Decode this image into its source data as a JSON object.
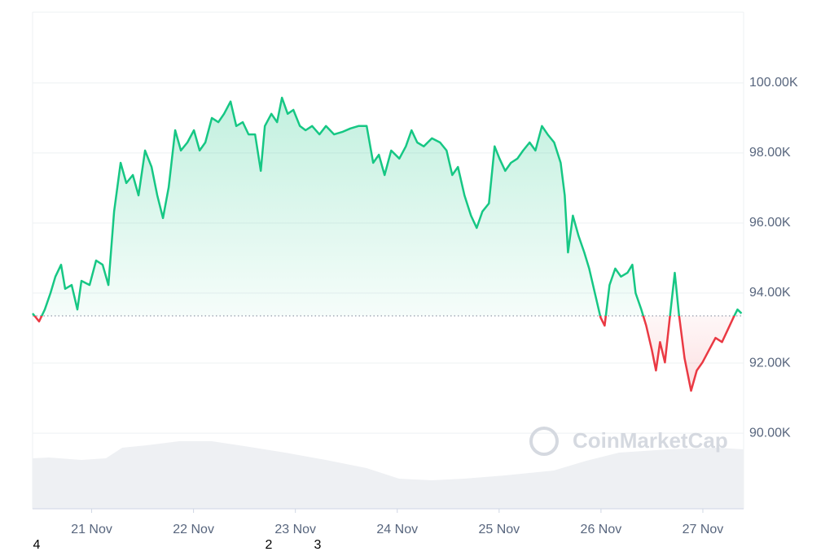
{
  "chart_data": {
    "type": "baseline-line",
    "watermark": "CoinMarketCap",
    "footnotes": [
      "4",
      "2",
      "3"
    ],
    "above_color": "#16c784",
    "below_color": "#ea3943",
    "baseline": 93.35,
    "xlim": [
      20.42,
      27.4
    ],
    "xticks": [
      {
        "value": 21,
        "label": "21 Nov"
      },
      {
        "value": 22,
        "label": "22 Nov"
      },
      {
        "value": 23,
        "label": "23 Nov"
      },
      {
        "value": 24,
        "label": "24 Nov"
      },
      {
        "value": 25,
        "label": "25 Nov"
      },
      {
        "value": 26,
        "label": "26 Nov"
      },
      {
        "value": 27,
        "label": "27 Nov"
      }
    ],
    "ylim": [
      87.84,
      102.02
    ],
    "yticks": [
      {
        "value": 90,
        "label": "90.00K"
      },
      {
        "value": 92,
        "label": "92.00K"
      },
      {
        "value": 94,
        "label": "94.00K"
      },
      {
        "value": 96,
        "label": "96.00K"
      },
      {
        "value": 98,
        "label": "98.00K"
      },
      {
        "value": 100,
        "label": "100.00K"
      }
    ],
    "grid": true,
    "x": [
      20.42,
      20.484,
      20.54,
      20.596,
      20.644,
      20.7,
      20.74,
      20.804,
      20.86,
      20.9,
      20.98,
      21.044,
      21.108,
      21.164,
      21.22,
      21.284,
      21.34,
      21.404,
      21.46,
      21.524,
      21.588,
      21.644,
      21.7,
      21.756,
      21.82,
      21.876,
      21.94,
      22.004,
      22.06,
      22.116,
      22.18,
      22.244,
      22.3,
      22.364,
      22.42,
      22.484,
      22.54,
      22.604,
      22.66,
      22.7,
      22.764,
      22.82,
      22.868,
      22.924,
      22.98,
      23.044,
      23.1,
      23.164,
      23.236,
      23.3,
      23.38,
      23.46,
      23.54,
      23.62,
      23.7,
      23.764,
      23.82,
      23.876,
      23.94,
      24.02,
      24.084,
      24.14,
      24.196,
      24.26,
      24.34,
      24.42,
      24.484,
      24.54,
      24.596,
      24.66,
      24.724,
      24.78,
      24.836,
      24.9,
      24.956,
      25.004,
      25.06,
      25.116,
      25.18,
      25.236,
      25.3,
      25.356,
      25.42,
      25.476,
      25.54,
      25.604,
      25.644,
      25.676,
      25.724,
      25.78,
      25.836,
      25.884,
      25.94,
      25.996,
      26.036,
      26.084,
      26.14,
      26.196,
      26.26,
      26.308,
      26.34,
      26.396,
      26.444,
      26.5,
      26.54,
      26.58,
      26.628,
      26.676,
      26.724,
      26.764,
      26.82,
      26.884,
      26.94,
      26.996,
      27.06,
      27.124,
      27.188,
      27.244,
      27.3,
      27.34,
      27.38
    ],
    "values": [
      93.42,
      93.19,
      93.53,
      94.0,
      94.47,
      94.81,
      94.12,
      94.23,
      93.53,
      94.35,
      94.23,
      94.93,
      94.81,
      94.23,
      96.33,
      97.72,
      97.14,
      97.37,
      96.79,
      98.07,
      97.6,
      96.79,
      96.14,
      97.02,
      98.65,
      98.07,
      98.3,
      98.65,
      98.07,
      98.3,
      99.0,
      98.88,
      99.12,
      99.47,
      98.77,
      98.88,
      98.53,
      98.53,
      97.49,
      98.77,
      99.12,
      98.88,
      99.58,
      99.12,
      99.23,
      98.77,
      98.65,
      98.77,
      98.53,
      98.77,
      98.53,
      98.6,
      98.7,
      98.77,
      98.77,
      97.72,
      97.95,
      97.37,
      98.07,
      97.84,
      98.19,
      98.65,
      98.3,
      98.19,
      98.42,
      98.3,
      98.07,
      97.37,
      97.6,
      96.79,
      96.21,
      95.86,
      96.33,
      96.56,
      98.19,
      97.84,
      97.49,
      97.72,
      97.84,
      98.07,
      98.3,
      98.07,
      98.77,
      98.53,
      98.3,
      97.72,
      96.79,
      95.16,
      96.21,
      95.63,
      95.16,
      94.7,
      94.0,
      93.3,
      93.07,
      94.23,
      94.7,
      94.47,
      94.58,
      94.81,
      94.0,
      93.53,
      93.07,
      92.37,
      91.79,
      92.6,
      92.02,
      93.3,
      94.58,
      93.42,
      92.14,
      91.21,
      91.79,
      92.02,
      92.37,
      92.72,
      92.6,
      92.95,
      93.3,
      93.53,
      93.42
    ]
  }
}
